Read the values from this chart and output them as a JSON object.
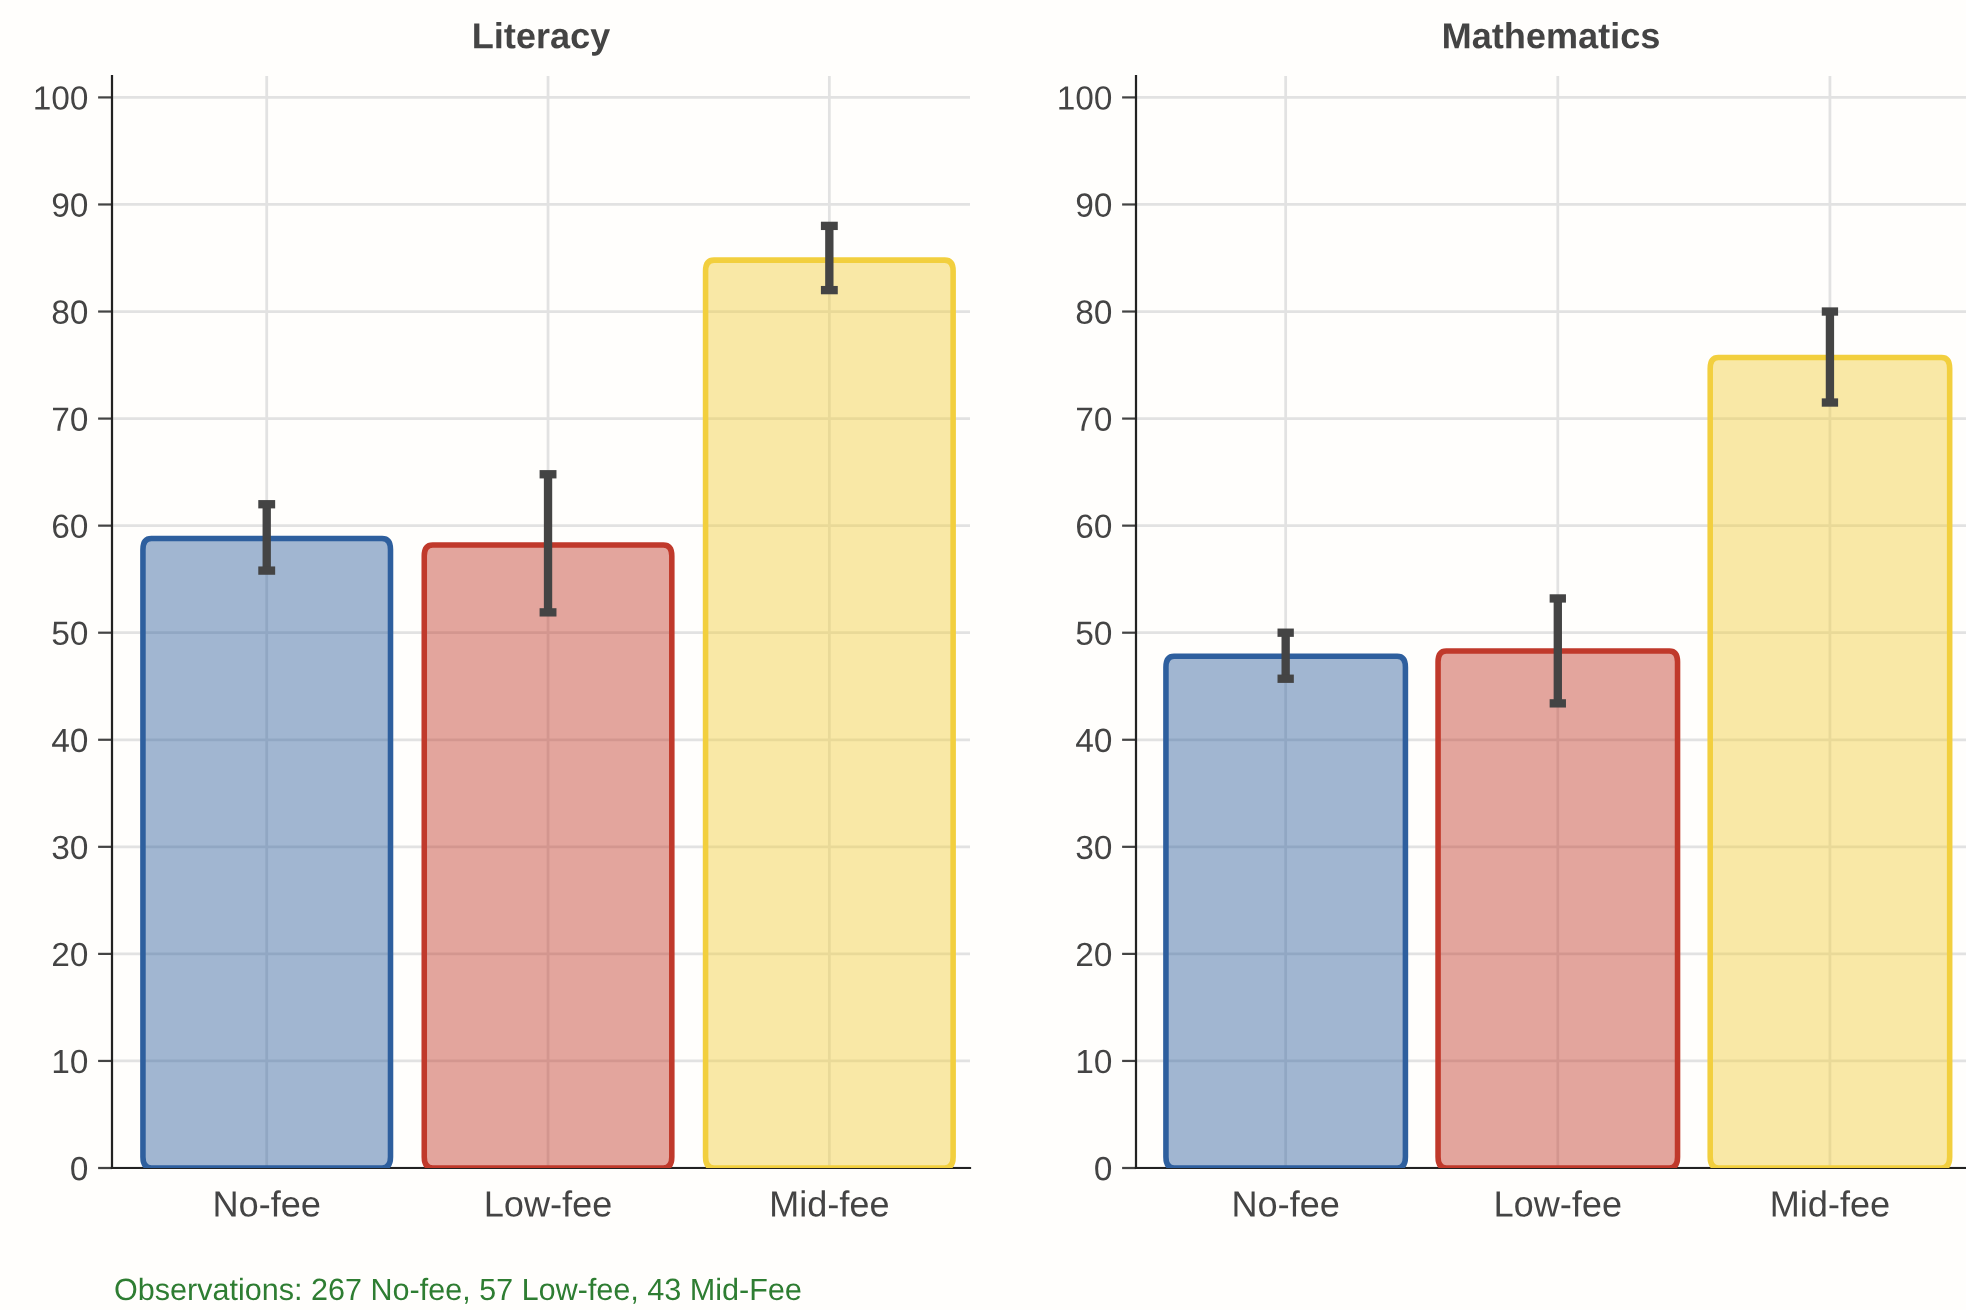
{
  "chart_data": [
    {
      "type": "bar",
      "title": "Literacy",
      "categories": [
        "No-fee",
        "Low-fee",
        "Mid-fee"
      ],
      "values": [
        58.8,
        58.2,
        84.8
      ],
      "colors": [
        "#2e5f9e",
        "#c0392b",
        "#f2cf3e"
      ],
      "errors": [
        [
          55.8,
          62.0
        ],
        [
          51.9,
          64.8
        ],
        [
          82.0,
          88.0
        ]
      ],
      "ylim": [
        0,
        102
      ],
      "yticks": [
        0,
        10,
        20,
        30,
        40,
        50,
        60,
        70,
        80,
        90,
        100
      ],
      "grid": true
    },
    {
      "type": "bar",
      "title": "Mathematics",
      "categories": [
        "No-fee",
        "Low-fee",
        "Mid-fee"
      ],
      "values": [
        47.8,
        48.3,
        75.7
      ],
      "colors": [
        "#2e5f9e",
        "#c0392b",
        "#f2cf3e"
      ],
      "errors": [
        [
          45.7,
          50.0
        ],
        [
          43.4,
          53.2
        ],
        [
          71.5,
          80.0
        ]
      ],
      "ylim": [
        0,
        102
      ],
      "yticks": [
        0,
        10,
        20,
        30,
        40,
        50,
        60,
        70,
        80,
        90,
        100
      ],
      "grid": true,
      "annotations": [
        "Observations: 267 No-fee, 57 Low-fee, 43 Mid-Fee"
      ]
    }
  ]
}
